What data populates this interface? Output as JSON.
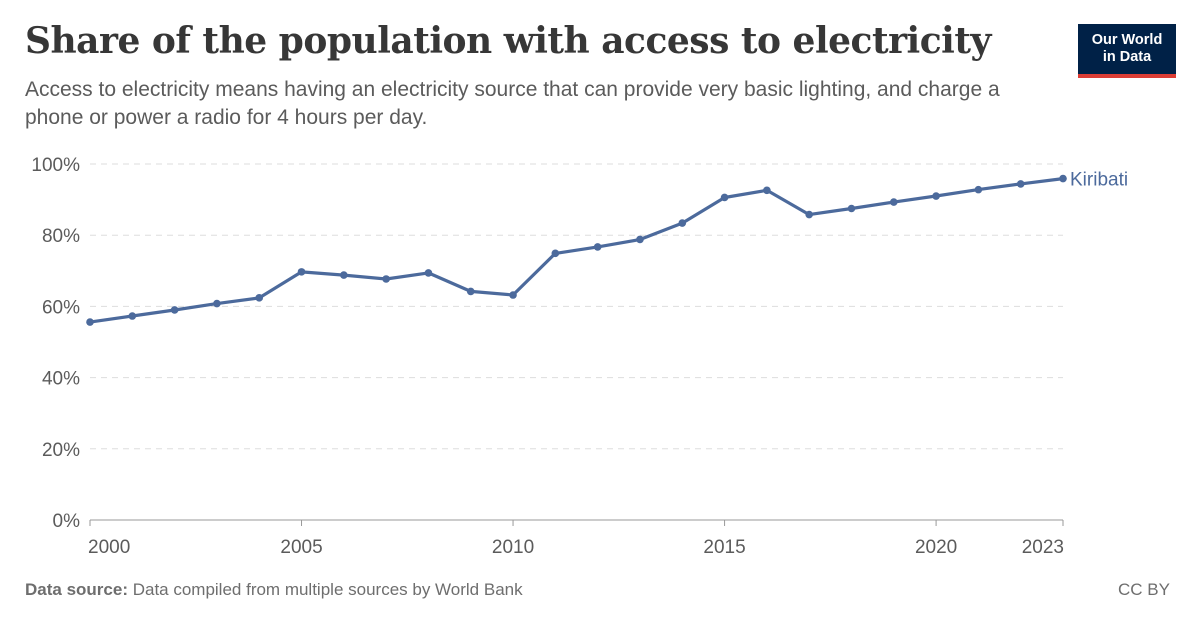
{
  "header": {
    "title": "Share of the population with access to electricity",
    "subtitle": "Access to electricity means having an electricity source that can provide very basic lighting, and charge a phone or power a radio for 4 hours per day.",
    "logo_line1": "Our World",
    "logo_line2": "in Data"
  },
  "footer": {
    "source_label": "Data source:",
    "source_text": " Data compiled from multiple sources by World Bank",
    "license": "CC BY"
  },
  "colors": {
    "series": "#4c6a9c",
    "grid": "#dddddd",
    "axis": "#999999",
    "tick_text": "#5b5b5b",
    "logo_bg": "#002147",
    "logo_accent": "#dc3d35"
  },
  "chart_data": {
    "type": "line",
    "title": "Share of the population with access to electricity",
    "xlabel": "",
    "ylabel": "",
    "xlim": [
      2000,
      2023
    ],
    "ylim": [
      0,
      100
    ],
    "x_ticks": [
      2000,
      2005,
      2010,
      2015,
      2020,
      2023
    ],
    "y_ticks": [
      0,
      20,
      40,
      60,
      80,
      100
    ],
    "y_tick_labels": [
      "0%",
      "20%",
      "40%",
      "60%",
      "80%",
      "100%"
    ],
    "grid": "horizontal dashed",
    "series": [
      {
        "name": "Kiribati",
        "x": [
          2000,
          2001,
          2002,
          2003,
          2004,
          2005,
          2006,
          2007,
          2008,
          2009,
          2010,
          2011,
          2012,
          2013,
          2014,
          2015,
          2016,
          2017,
          2018,
          2019,
          2020,
          2021,
          2022,
          2023
        ],
        "y": [
          55.6,
          57.3,
          59.0,
          60.8,
          62.4,
          69.7,
          68.8,
          67.7,
          69.4,
          64.2,
          63.2,
          74.9,
          76.7,
          78.8,
          83.4,
          90.6,
          92.6,
          85.8,
          87.5,
          89.3,
          91.0,
          92.8,
          94.4,
          95.9
        ]
      }
    ]
  }
}
